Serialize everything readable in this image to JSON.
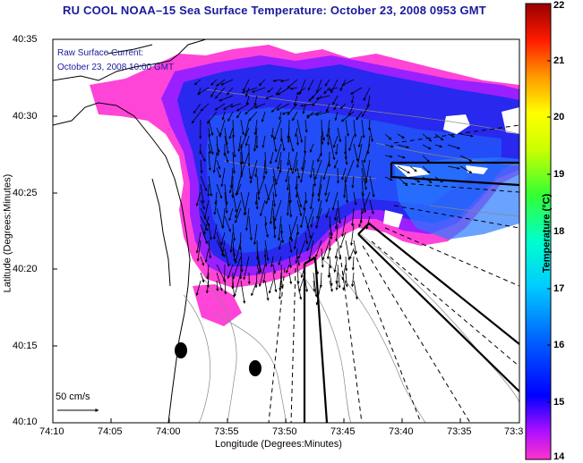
{
  "title": "RU COOL  NOAA–15  Sea Surface Temperature:  October 23, 2008 0953 GMT",
  "current_label": {
    "line1": "Raw Surface Current:",
    "line2": "October 23, 2008 10:00 GMT"
  },
  "axes": {
    "xlabel": "Longitude (Degrees:Minutes)",
    "ylabel": "Latitude (Degrees:Minutes)",
    "x_ticks": [
      "74:10",
      "74:05",
      "74:00",
      "73:55",
      "73:50",
      "73:45",
      "73:40",
      "73:35",
      "73:3"
    ],
    "y_ticks": [
      "40:35",
      "40:30",
      "40:25",
      "40:20",
      "40:15",
      "40:10"
    ]
  },
  "colorbar": {
    "label": "Temperature (°C)",
    "ticks": [
      "22",
      "21",
      "20",
      "19",
      "18",
      "17",
      "16",
      "15",
      "14"
    ],
    "min": 14,
    "max": 22,
    "colors": [
      "#ff33cc",
      "#0000ff",
      "#00ffff",
      "#33ff33",
      "#ffff00",
      "#ff8800",
      "#ff0000",
      "#990000"
    ]
  },
  "legend": {
    "scale_label": "50 cm/s"
  },
  "colors": {
    "title": "#1a1a9c",
    "sst_warm_pink": "#ff33cc",
    "sst_core_blue": "#2020e0",
    "vector": "#000000"
  }
}
